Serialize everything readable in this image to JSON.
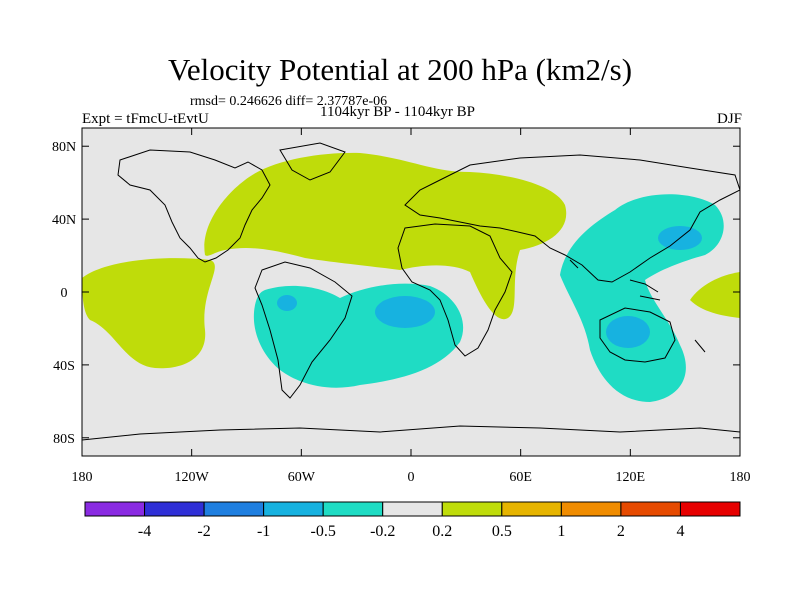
{
  "header": {
    "title": "Velocity Potential at 200 hPa (km2/s)",
    "stats": "rmsd= 0.246626 diff= 2.37787e-06",
    "experiment": "Expt = tFmcU-tEvtU",
    "period": "1104kyr BP - 1104kyr BP",
    "season": "DJF"
  },
  "axes": {
    "lat_ticks": [
      {
        "value": 80,
        "label": "80N"
      },
      {
        "value": 40,
        "label": "40N"
      },
      {
        "value": 0,
        "label": "0"
      },
      {
        "value": -40,
        "label": "40S"
      },
      {
        "value": -80,
        "label": "80S"
      }
    ],
    "lon_ticks": [
      {
        "value": -180,
        "label": "180"
      },
      {
        "value": -120,
        "label": "120W"
      },
      {
        "value": -60,
        "label": "60W"
      },
      {
        "value": 0,
        "label": "0"
      },
      {
        "value": 60,
        "label": "60E"
      },
      {
        "value": 120,
        "label": "120E"
      },
      {
        "value": 180,
        "label": "180"
      }
    ],
    "lon_range": [
      -180,
      180
    ],
    "lat_range": [
      -90,
      90
    ]
  },
  "colorbar": {
    "colors": [
      "#8a2be2",
      "#2f2fd6",
      "#1f7fe0",
      "#17b2e0",
      "#1fdcc4",
      "#e6e6e6",
      "#bfdc0a",
      "#e6b400",
      "#f08c00",
      "#e64a00",
      "#e60000"
    ],
    "labels": [
      "-4",
      "-2",
      "-1",
      "-0.5",
      "-0.2",
      "0.2",
      "0.5",
      "1",
      "2",
      "4"
    ]
  },
  "map": {
    "background_color": "#e6e6e6",
    "colors": {
      "positive": "#bfdc0a",
      "negative": "#1fdcc4",
      "strong_negative": "#17b2e0",
      "coast": "#000000"
    }
  }
}
